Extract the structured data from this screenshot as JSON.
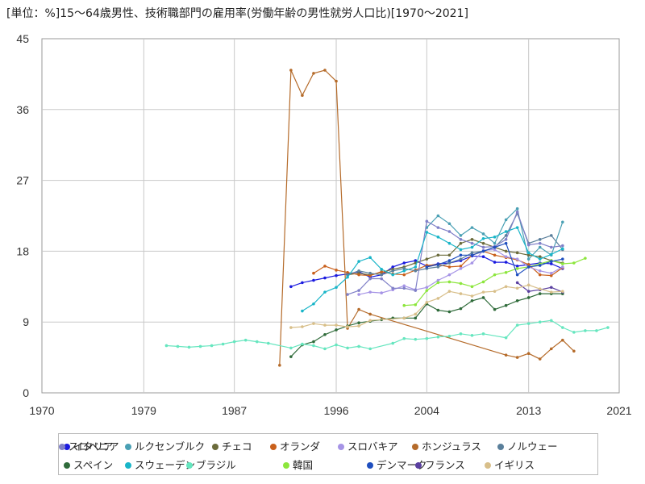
{
  "title": "[単位：%]15～64歳男性、技術職部門の雇用率(労働年齢の男性就労人口比)[1970～2021]",
  "chart_data": {
    "type": "line",
    "title": "[単位：%]15～64歳男性、技術職部門の雇用率(労働年齢の男性就労人口比)[1970～2021]",
    "xlabel": "",
    "ylabel": "",
    "xlim": [
      1970,
      2021
    ],
    "ylim": [
      0,
      45
    ],
    "x_ticks": [
      "1970",
      "1979",
      "1987",
      "1996",
      "2004",
      "2013",
      "2021"
    ],
    "y_ticks": [
      "0",
      "9",
      "18",
      "27",
      "36",
      "45"
    ],
    "grid": true,
    "legend_position": "bottom",
    "series": [
      {
        "name": "イタリア",
        "color": "#1a1adf",
        "x": [
          1992,
          1993,
          1994,
          1995,
          1996,
          1997,
          1998,
          1999,
          2000,
          2001,
          2002,
          2003,
          2004,
          2005,
          2006,
          2007,
          2008,
          2009,
          2010,
          2011,
          2012,
          2013,
          2014,
          2015,
          2016
        ],
        "y": [
          13.5,
          14.0,
          14.3,
          14.6,
          14.9,
          15.1,
          15.4,
          14.7,
          15.0,
          16.0,
          16.5,
          16.8,
          16.1,
          16.4,
          16.5,
          16.8,
          17.4,
          17.3,
          16.6,
          16.6,
          16.1,
          16.3,
          16.5,
          16.4,
          15.8
        ]
      },
      {
        "name": "ルクセンブルク",
        "color": "#4aa0b4",
        "x": [
          2004,
          2005,
          2006,
          2007,
          2008,
          2009,
          2010,
          2011,
          2012,
          2013,
          2014,
          2015,
          2016
        ],
        "y": [
          21.0,
          22.5,
          21.5,
          20.0,
          21.0,
          20.2,
          19.0,
          22.0,
          23.4,
          17.0,
          18.5,
          17.5,
          21.7
        ]
      },
      {
        "name": "チェコ",
        "color": "#6b6b3b",
        "x": [
          1997,
          1998,
          1999,
          2000,
          2001,
          2002,
          2003,
          2004,
          2005,
          2006,
          2007,
          2008,
          2009,
          2010,
          2011,
          2012,
          2013,
          2014,
          2015,
          2016
        ],
        "y": [
          15.0,
          15.2,
          15.0,
          15.3,
          15.7,
          16.0,
          16.5,
          17.0,
          17.5,
          17.5,
          19.0,
          19.5,
          19.0,
          18.5,
          18.0,
          17.8,
          17.5,
          17.3,
          16.8,
          16.5
        ]
      },
      {
        "name": "オランダ",
        "color": "#c9601c",
        "x": [
          1994,
          1995,
          1996,
          1997,
          1998,
          1999,
          2000,
          2001,
          2002,
          2003,
          2004,
          2005,
          2006,
          2007,
          2008,
          2009,
          2010,
          2011,
          2012,
          2013,
          2014,
          2015,
          2016
        ],
        "y": [
          15.2,
          16.1,
          15.6,
          15.3,
          15.0,
          14.9,
          15.4,
          15.1,
          15.0,
          15.6,
          16.2,
          16.3,
          16.0,
          16.1,
          17.5,
          18.0,
          17.5,
          17.2,
          16.9,
          16.3,
          15.0,
          14.9,
          15.9
        ]
      },
      {
        "name": "スロバキア",
        "color": "#a694e6",
        "x": [
          1998,
          1999,
          2000,
          2001,
          2002,
          2003,
          2004,
          2005,
          2006,
          2007,
          2008,
          2009,
          2010,
          2011,
          2012,
          2013,
          2014,
          2015,
          2016
        ],
        "y": [
          12.5,
          12.8,
          12.7,
          13.1,
          13.6,
          13.1,
          13.4,
          14.3,
          15.0,
          15.8,
          16.5,
          18.1,
          18.2,
          17.3,
          17.0,
          16.0,
          15.5,
          15.2,
          16.0
        ]
      },
      {
        "name": "ホンジュラス",
        "color": "#b56b2a",
        "x": [
          1991,
          1992,
          1993,
          1994,
          1995,
          1996,
          1997,
          1998,
          1999,
          2011,
          2012,
          2013,
          2014,
          2015,
          2016,
          2017
        ],
        "y": [
          3.5,
          41.0,
          37.8,
          40.6,
          41.0,
          39.6,
          8.2,
          10.6,
          10.0,
          4.8,
          4.5,
          5.0,
          4.3,
          5.6,
          6.7,
          5.3
        ]
      },
      {
        "name": "ノルウェー",
        "color": "#5a7f9b",
        "x": [
          1997,
          1998,
          1999,
          2000,
          2001,
          2002,
          2003,
          2004,
          2005,
          2006,
          2007,
          2008,
          2009,
          2010,
          2011,
          2012,
          2013,
          2014,
          2015,
          2016
        ],
        "y": [
          15.0,
          15.5,
          15.2,
          15.0,
          15.5,
          15.8,
          15.5,
          15.8,
          16.0,
          16.5,
          17.0,
          17.8,
          18.0,
          18.5,
          20.0,
          22.8,
          19.0,
          19.5,
          20.0,
          18.2
        ]
      },
      {
        "name": "スロベニア",
        "color": "#8080c8",
        "x": [
          1997,
          1998,
          1999,
          2000,
          2001,
          2002,
          2003,
          2004,
          2005,
          2006,
          2007,
          2008,
          2009,
          2010,
          2011,
          2012,
          2013,
          2014,
          2015,
          2016
        ],
        "y": [
          12.5,
          13.0,
          14.5,
          14.5,
          13.3,
          13.3,
          13.0,
          21.8,
          21.0,
          20.5,
          19.5,
          19.0,
          18.5,
          18.6,
          19.5,
          23.0,
          18.8,
          19.0,
          18.5,
          18.7
        ]
      },
      {
        "name": "スペイン",
        "color": "#2f6b3a",
        "x": [
          1992,
          1993,
          1994,
          1995,
          1996,
          1997,
          1998,
          1999,
          2000,
          2001,
          2002,
          2003,
          2004,
          2005,
          2006,
          2007,
          2008,
          2009,
          2010,
          2011,
          2012,
          2013,
          2014,
          2015,
          2016
        ],
        "y": [
          4.6,
          6.1,
          6.5,
          7.4,
          8.0,
          8.5,
          8.9,
          9.1,
          9.3,
          9.5,
          9.5,
          9.5,
          11.3,
          10.5,
          10.3,
          10.7,
          11.7,
          12.1,
          10.6,
          11.1,
          11.7,
          12.1,
          12.6,
          12.6,
          12.6
        ]
      },
      {
        "name": "スウェーデン",
        "color": "#19b5c8",
        "x": [
          1993,
          1994,
          1995,
          1996,
          1997,
          1998,
          1999,
          2000,
          2001,
          2002,
          2003,
          2004,
          2005,
          2006,
          2007,
          2008,
          2009,
          2010,
          2011,
          2012,
          2013,
          2014,
          2015,
          2016
        ],
        "y": [
          10.4,
          11.3,
          12.8,
          13.4,
          14.7,
          16.7,
          17.2,
          15.7,
          15.0,
          15.5,
          16.0,
          20.4,
          19.8,
          19.0,
          18.2,
          18.5,
          19.6,
          19.8,
          20.5,
          21.0,
          17.8,
          17.0,
          17.6,
          18.3
        ]
      },
      {
        "name": "ブラジル",
        "color": "#66e6bf",
        "x": [
          1981,
          1982,
          1983,
          1984,
          1985,
          1986,
          1987,
          1988,
          1989,
          1990,
          1992,
          1993,
          1994,
          1995,
          1996,
          1997,
          1998,
          1999,
          2001,
          2002,
          2003,
          2004,
          2005,
          2006,
          2007,
          2008,
          2009,
          2011,
          2012,
          2013,
          2014,
          2015,
          2016,
          2017,
          2018,
          2019,
          2020
        ],
        "y": [
          6.0,
          5.9,
          5.8,
          5.9,
          6.0,
          6.2,
          6.5,
          6.7,
          6.5,
          6.3,
          5.7,
          6.2,
          6.0,
          5.6,
          6.1,
          5.7,
          5.9,
          5.6,
          6.3,
          6.9,
          6.8,
          6.9,
          7.1,
          7.2,
          7.5,
          7.3,
          7.5,
          7.0,
          8.6,
          8.8,
          9.0,
          9.2,
          8.3,
          7.7,
          7.9,
          7.9,
          8.3
        ]
      },
      {
        "name": "韓国",
        "color": "#8ce63c",
        "x": [
          2002,
          2003,
          2004,
          2005,
          2006,
          2007,
          2008,
          2009,
          2010,
          2011,
          2012,
          2013,
          2014,
          2015,
          2016,
          2017,
          2018
        ],
        "y": [
          11.1,
          11.2,
          13.0,
          14.0,
          14.1,
          13.9,
          13.5,
          14.1,
          15.0,
          15.3,
          15.8,
          16.0,
          16.4,
          16.8,
          16.4,
          16.5,
          17.1
        ]
      },
      {
        "name": "デンマーク",
        "color": "#1f4fbf",
        "x": [
          2004,
          2005,
          2006,
          2007,
          2008,
          2009,
          2010,
          2011,
          2012,
          2013,
          2014,
          2015,
          2016
        ],
        "y": [
          16.0,
          16.3,
          16.8,
          17.5,
          17.5,
          18.0,
          18.5,
          19.0,
          15.0,
          16.0,
          16.2,
          16.7,
          17.0
        ]
      },
      {
        "name": "フランス",
        "color": "#5a3fa0",
        "x": [
          2012,
          2013,
          2014,
          2015,
          2016
        ],
        "y": [
          14.0,
          12.9,
          13.1,
          13.4,
          12.8
        ]
      },
      {
        "name": "イギリス",
        "color": "#d8bf8a",
        "x": [
          1992,
          1993,
          1994,
          1995,
          1996,
          1997,
          1998,
          1999,
          2002,
          2003,
          2004,
          2005,
          2006,
          2007,
          2008,
          2009,
          2010,
          2011,
          2012,
          2013,
          2014,
          2015,
          2016
        ],
        "y": [
          8.3,
          8.4,
          8.8,
          8.6,
          8.6,
          8.4,
          8.5,
          9.2,
          9.5,
          10.0,
          11.5,
          12.0,
          12.9,
          12.6,
          12.3,
          12.8,
          12.9,
          13.5,
          13.3,
          13.7,
          13.2,
          12.8,
          12.9
        ]
      }
    ]
  }
}
